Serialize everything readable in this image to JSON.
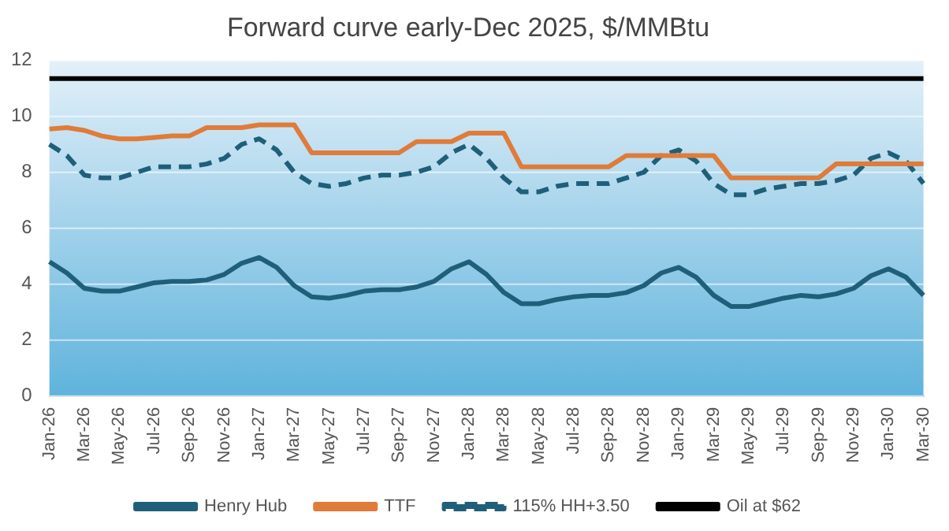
{
  "chart_data": {
    "type": "line",
    "title": "Forward curve early-Dec 2025, $/MMBtu",
    "categories": [
      "Jan-26",
      null,
      "Mar-26",
      null,
      "May-26",
      null,
      "Jul-26",
      null,
      "Sep-26",
      null,
      "Nov-26",
      null,
      "Jan-27",
      null,
      "Mar-27",
      null,
      "May-27",
      null,
      "Jul-27",
      null,
      "Sep-27",
      null,
      "Nov-27",
      null,
      "Jan-28",
      null,
      "Mar-28",
      null,
      "May-28",
      null,
      "Jul-28",
      null,
      "Sep-28",
      null,
      "Nov-28",
      null,
      "Jan-29",
      null,
      "Mar-29",
      null,
      "May-29",
      null,
      "Jul-29",
      null,
      "Sep-29",
      null,
      "Nov-29",
      null,
      "Jan-30",
      null,
      "Mar-30"
    ],
    "series": [
      {
        "name": "Henry Hub",
        "color": "#1f5f7a",
        "line_style": "solid",
        "values": [
          4.8,
          4.4,
          3.85,
          3.75,
          3.75,
          3.9,
          4.05,
          4.1,
          4.1,
          4.15,
          4.35,
          4.75,
          4.95,
          4.6,
          3.95,
          3.55,
          3.5,
          3.6,
          3.75,
          3.8,
          3.8,
          3.9,
          4.1,
          4.55,
          4.8,
          4.35,
          3.7,
          3.3,
          3.3,
          3.45,
          3.55,
          3.6,
          3.6,
          3.7,
          3.95,
          4.4,
          4.6,
          4.25,
          3.6,
          3.2,
          3.2,
          3.35,
          3.5,
          3.6,
          3.55,
          3.65,
          3.85,
          4.3,
          4.55,
          4.25,
          3.6
        ]
      },
      {
        "name": "TTF",
        "color": "#e07b39",
        "line_style": "solid",
        "values": [
          9.55,
          9.6,
          9.5,
          9.3,
          9.2,
          9.2,
          9.25,
          9.3,
          9.3,
          9.6,
          9.6,
          9.6,
          9.7,
          9.7,
          9.7,
          8.7,
          8.7,
          8.7,
          8.7,
          8.7,
          8.7,
          9.1,
          9.1,
          9.1,
          9.4,
          9.4,
          9.4,
          8.2,
          8.2,
          8.2,
          8.2,
          8.2,
          8.2,
          8.6,
          8.6,
          8.6,
          8.6,
          8.6,
          8.6,
          7.8,
          7.8,
          7.8,
          7.8,
          7.8,
          7.8,
          8.3,
          8.3,
          8.3,
          8.3,
          8.3,
          8.3
        ]
      },
      {
        "name": "115% HH+3.50",
        "color": "#1f5f7a",
        "line_style": "dashed",
        "values": [
          9.0,
          8.6,
          7.9,
          7.8,
          7.8,
          8.0,
          8.2,
          8.2,
          8.2,
          8.3,
          8.5,
          9.0,
          9.2,
          8.8,
          8.0,
          7.6,
          7.5,
          7.6,
          7.8,
          7.9,
          7.9,
          8.0,
          8.2,
          8.7,
          9.0,
          8.5,
          7.8,
          7.3,
          7.3,
          7.5,
          7.6,
          7.6,
          7.6,
          7.8,
          8.0,
          8.6,
          8.8,
          8.4,
          7.6,
          7.2,
          7.2,
          7.4,
          7.5,
          7.6,
          7.6,
          7.7,
          7.9,
          8.5,
          8.7,
          8.4,
          7.6
        ]
      },
      {
        "name": "Oil at $62",
        "color": "#000000",
        "line_style": "solid",
        "values": [
          11.35,
          11.35,
          11.35,
          11.35,
          11.35,
          11.35,
          11.35,
          11.35,
          11.35,
          11.35,
          11.35,
          11.35,
          11.35,
          11.35,
          11.35,
          11.35,
          11.35,
          11.35,
          11.35,
          11.35,
          11.35,
          11.35,
          11.35,
          11.35,
          11.35,
          11.35,
          11.35,
          11.35,
          11.35,
          11.35,
          11.35,
          11.35,
          11.35,
          11.35,
          11.35,
          11.35,
          11.35,
          11.35,
          11.35,
          11.35,
          11.35,
          11.35,
          11.35,
          11.35,
          11.35,
          11.35,
          11.35,
          11.35,
          11.35,
          11.35,
          11.35
        ]
      }
    ],
    "ylim": [
      0,
      12
    ],
    "yticks": [
      0,
      2,
      4,
      6,
      8,
      10,
      12
    ],
    "grid": "y",
    "legend": "bottom",
    "marker": "none"
  }
}
